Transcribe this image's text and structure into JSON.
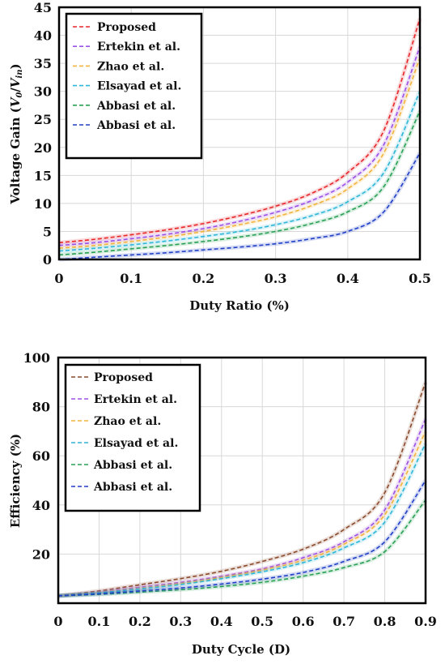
{
  "chart_data": [
    {
      "type": "line",
      "xlabel": "Duty Ratio (%)",
      "ylabel": "Voltage Gain (V0/Vin)",
      "xlim": [
        0,
        0.5
      ],
      "ylim": [
        0,
        45
      ],
      "x_ticks": [
        "0",
        "0.1",
        "0.2",
        "0.3",
        "0.4",
        "0.5"
      ],
      "y_ticks": [
        "0",
        "5",
        "10",
        "15",
        "20",
        "25",
        "30",
        "35",
        "40",
        "45"
      ],
      "grid": true,
      "legend_position": "top-left",
      "x": [
        0,
        0.05,
        0.1,
        0.15,
        0.2,
        0.25,
        0.3,
        0.35,
        0.4,
        0.45,
        0.5
      ],
      "series": [
        {
          "name": "Proposed",
          "color": "#e8262a",
          "values": [
            3,
            3.6,
            4.4,
            5.3,
            6.4,
            7.8,
            9.5,
            11.8,
            15.5,
            23,
            43
          ]
        },
        {
          "name": "Ertekin et al.",
          "color": "#9b50e6",
          "values": [
            2.5,
            3.0,
            3.7,
            4.5,
            5.5,
            6.8,
            8.4,
            10.5,
            13.8,
            20.5,
            38
          ]
        },
        {
          "name": "Zhao et al.",
          "color": "#f2b43d",
          "values": [
            2.0,
            2.5,
            3.2,
            4.0,
            5.0,
            6.2,
            7.6,
            9.6,
            12.6,
            19,
            36
          ]
        },
        {
          "name": "Elsayad et al.",
          "color": "#2eb6d8",
          "values": [
            1.5,
            2.0,
            2.6,
            3.3,
            4.1,
            5.0,
            6.2,
            7.8,
            10.3,
            15.5,
            30
          ]
        },
        {
          "name": "Abbasi et al.",
          "color": "#27a055",
          "values": [
            0.8,
            1.3,
            1.9,
            2.5,
            3.2,
            4.0,
            5.0,
            6.4,
            8.5,
            13,
            26.5
          ]
        },
        {
          "name": "Abbasi et al.",
          "color": "#1f3fc7",
          "values": [
            0,
            0.4,
            0.8,
            1.2,
            1.7,
            2.2,
            2.8,
            3.7,
            5.0,
            8.5,
            19
          ]
        }
      ]
    },
    {
      "type": "line",
      "xlabel": "Duty Cycle (D)",
      "ylabel": "Efficiency (%)",
      "xlim": [
        0,
        0.9
      ],
      "ylim": [
        0,
        100
      ],
      "x_ticks": [
        "0",
        "0.1",
        "0.2",
        "0.3",
        "0.4",
        "0.5",
        "0.6",
        "0.7",
        "0.8",
        "0.9"
      ],
      "y_ticks": [
        "20",
        "40",
        "60",
        "80",
        "100"
      ],
      "grid": true,
      "legend_position": "top-left",
      "x": [
        0,
        0.1,
        0.2,
        0.3,
        0.4,
        0.5,
        0.6,
        0.7,
        0.8,
        0.9
      ],
      "series": [
        {
          "name": "Proposed",
          "color": "#8b4a2b",
          "values": [
            3,
            5,
            7.5,
            10,
            13,
            17,
            22,
            30,
            45,
            90
          ]
        },
        {
          "name": "Ertekin et al.",
          "color": "#9b50e6",
          "values": [
            3,
            4.5,
            6.5,
            8.5,
            11,
            14,
            18.5,
            25,
            38,
            75
          ]
        },
        {
          "name": "Zhao et al.",
          "color": "#f2b43d",
          "values": [
            3,
            4.3,
            6,
            8,
            10.5,
            13.5,
            17.5,
            24,
            36,
            70
          ]
        },
        {
          "name": "Elsayad et al.",
          "color": "#2eb6d8",
          "values": [
            3,
            4.2,
            5.8,
            7.6,
            10,
            12.8,
            16.5,
            22.5,
            33,
            65
          ]
        },
        {
          "name": "Abbasi et al.",
          "color": "#27a055",
          "values": [
            3,
            3.6,
            4.5,
            5.5,
            6.8,
            8.5,
            11,
            14.5,
            21,
            42
          ]
        },
        {
          "name": "Abbasi et al.",
          "color": "#1f3fc7",
          "values": [
            3,
            3.8,
            5,
            6.2,
            7.8,
            9.8,
            12.5,
            17,
            25,
            50
          ]
        }
      ]
    }
  ]
}
